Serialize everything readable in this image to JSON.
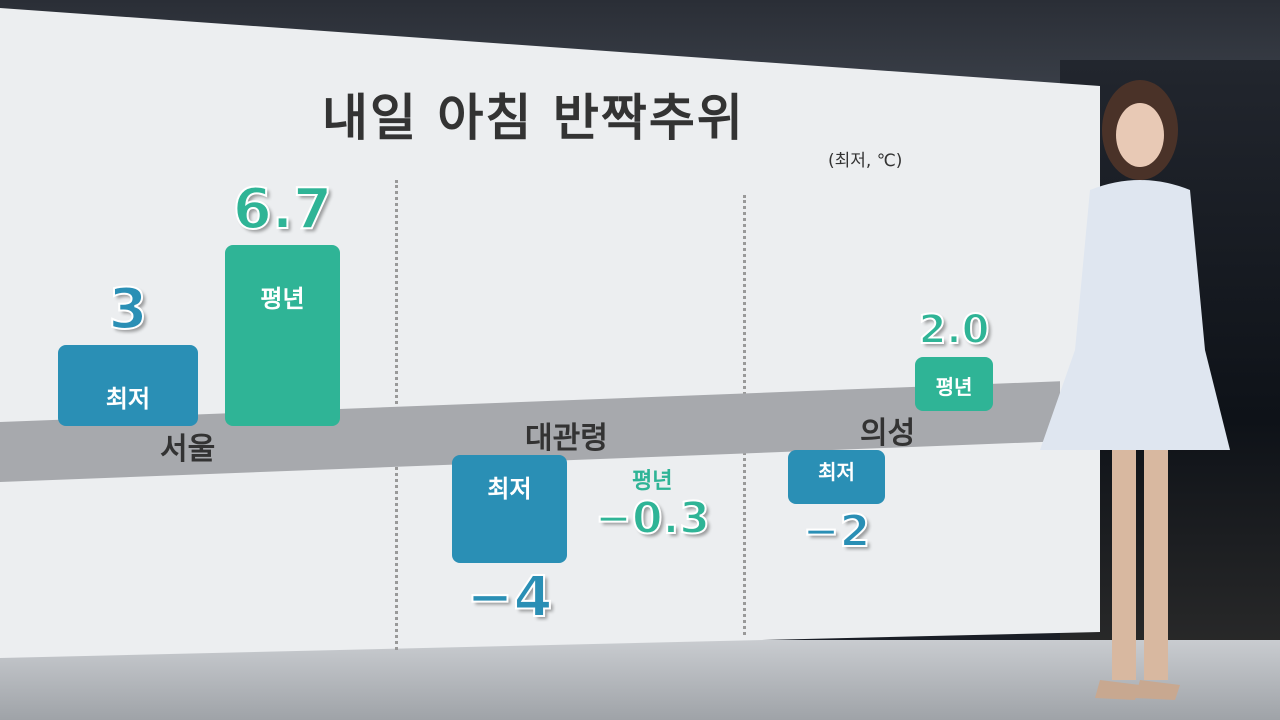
{
  "title": "내일 아침 반짝추위",
  "unit": "(최저, ℃)",
  "colors": {
    "min": "#2a8fb5",
    "normal": "#2fb496",
    "band": "#a7a9ad"
  },
  "chart_data": {
    "type": "bar",
    "title": "내일 아침 반짝추위",
    "unit": "(최저, ℃)",
    "categories": [
      "서울",
      "대관령",
      "의성"
    ],
    "series": [
      {
        "name": "최저",
        "values": [
          3,
          -4,
          -2
        ]
      },
      {
        "name": "평년",
        "values": [
          6.7,
          -0.3,
          2.0
        ]
      }
    ],
    "value_labels": {
      "최저": [
        "3",
        "-4",
        "-2"
      ],
      "평년": [
        "6.7",
        "-0.3",
        "2.0"
      ]
    }
  }
}
